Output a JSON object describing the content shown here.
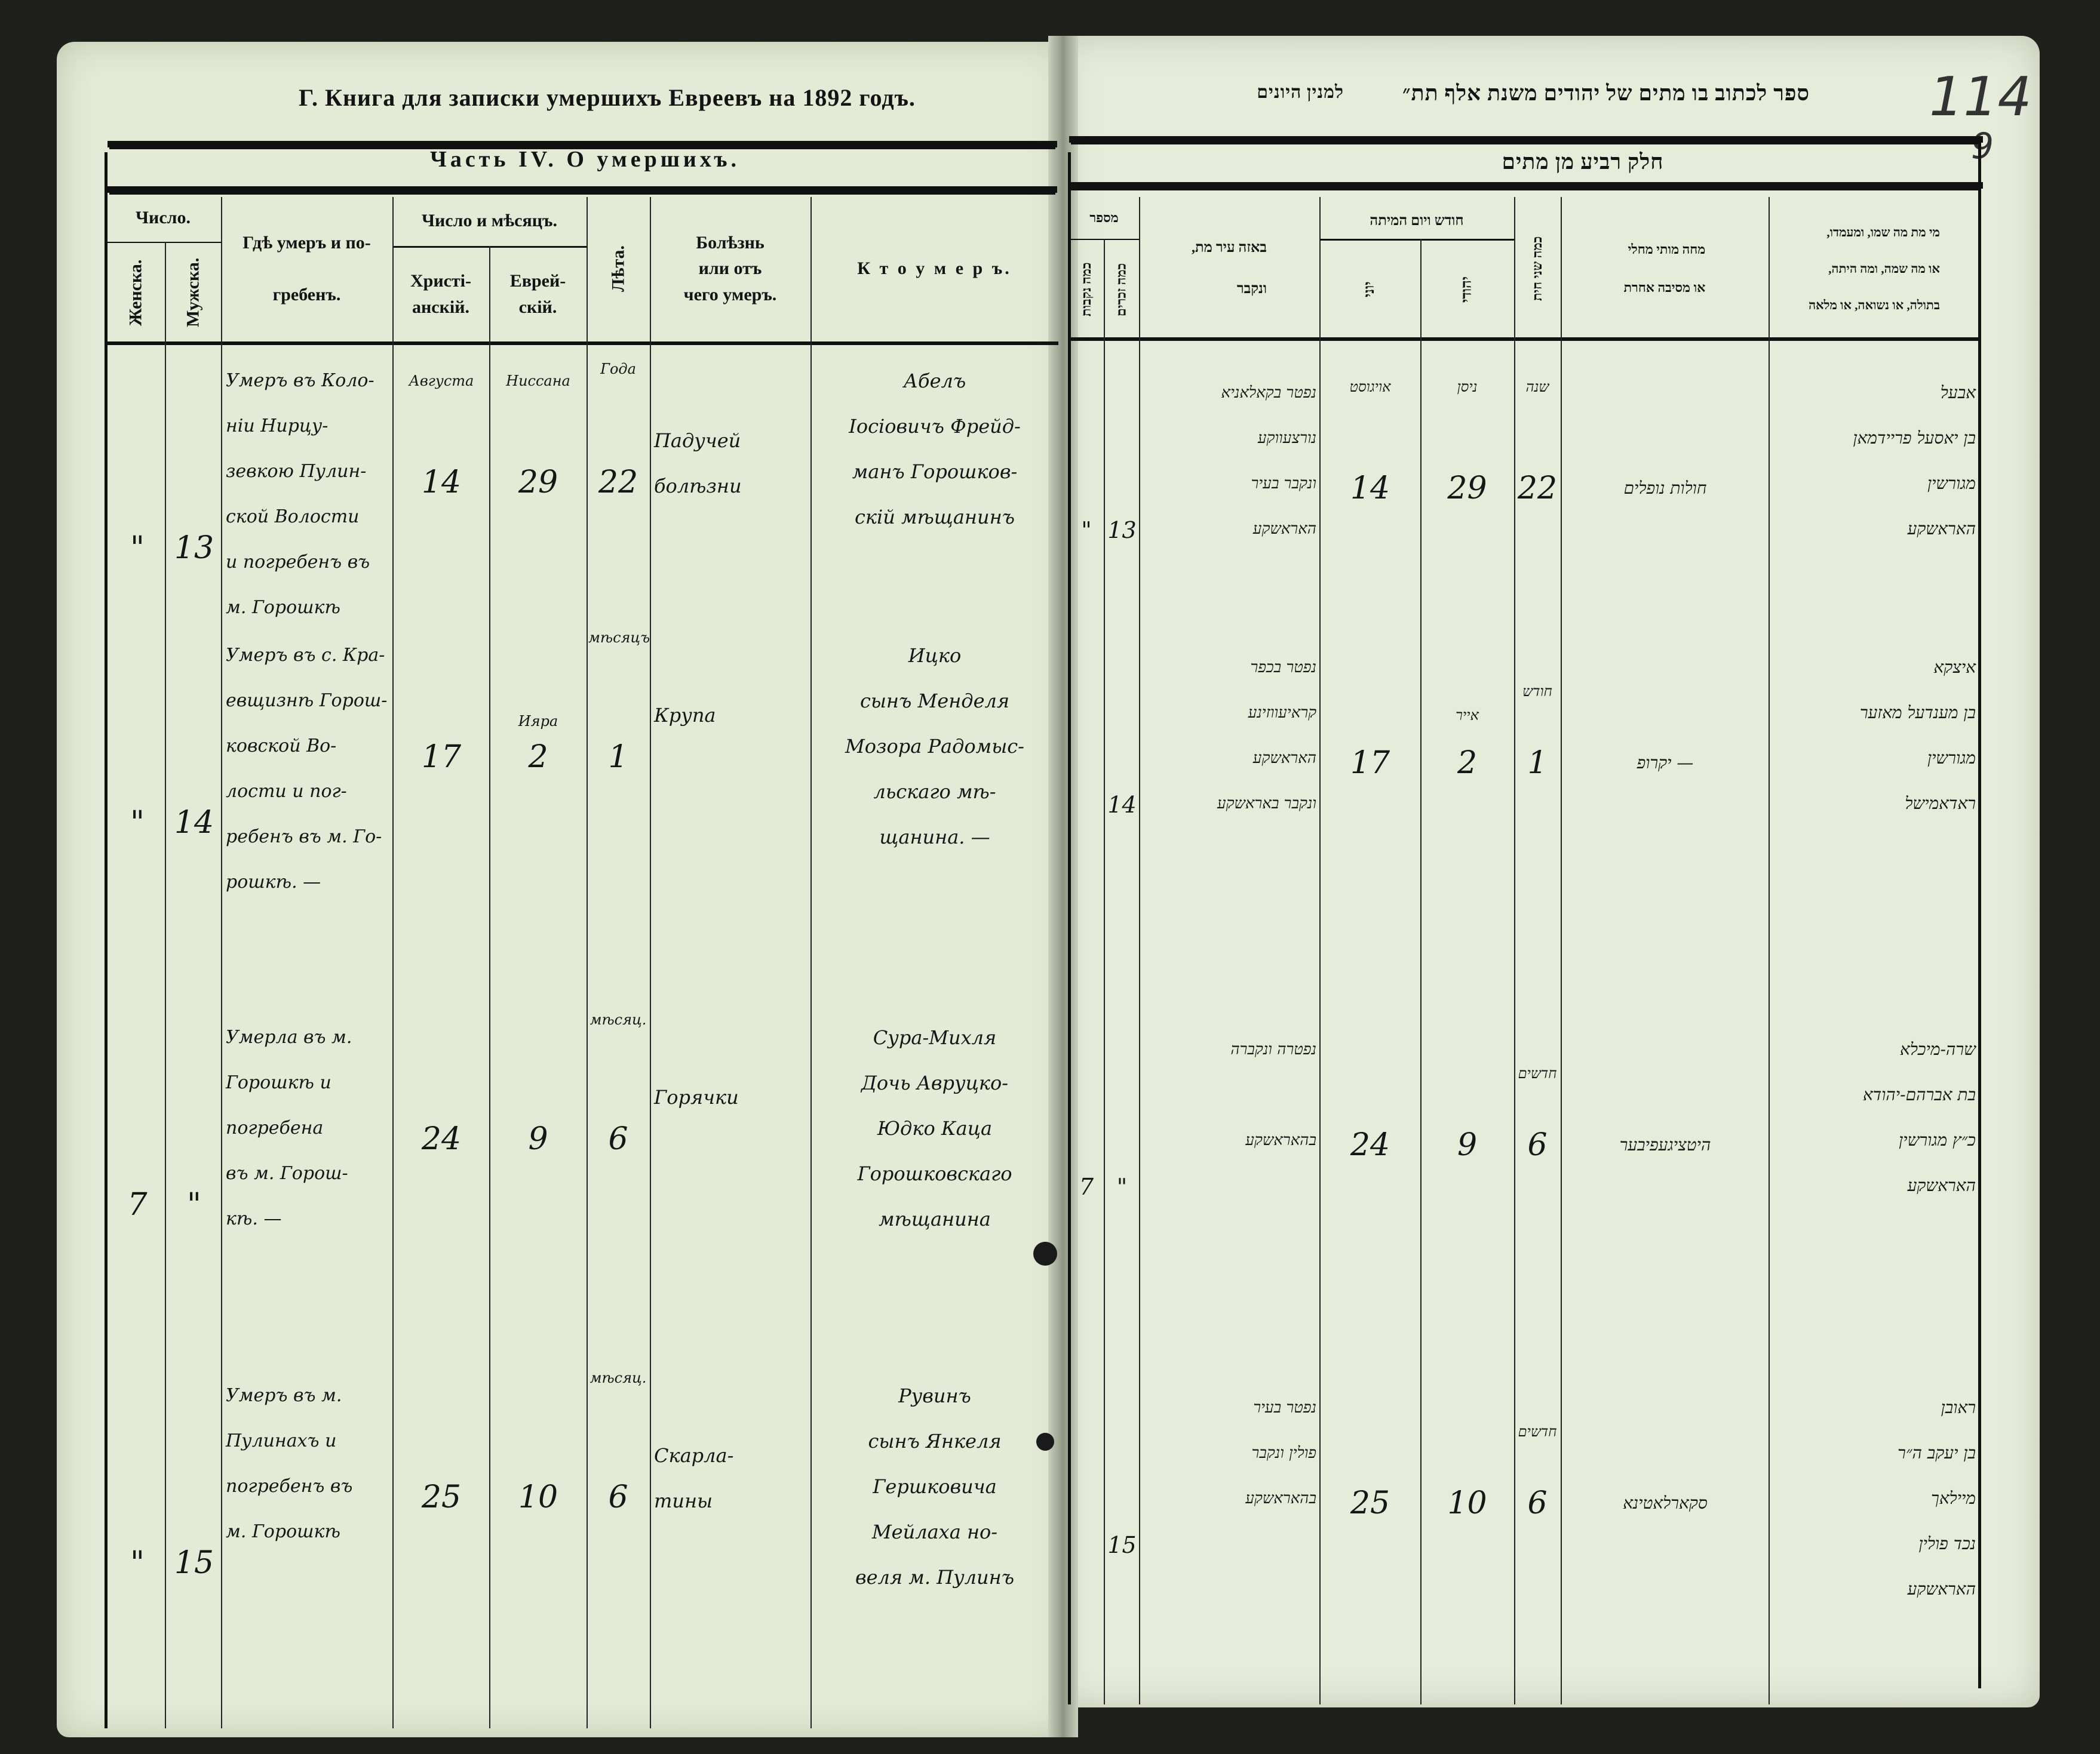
{
  "left_page": {
    "title": "Г. Книга для записки умершихъ Евреевъ на 1892 годъ.",
    "part_title": "Часть IV.  О умершихъ.",
    "headers": {
      "number": "Число.",
      "female": "Женска.",
      "male": "Мужска.",
      "place": "Гдѣ умеръ и по-\n\nгребенъ.",
      "date": "Число и мѣсяцъ.",
      "christian": "Христі-\nанскій.",
      "jewish": "Еврей-\nскій.",
      "age": "Лѣта.",
      "disease": "Болѣзнь\nили отъ\nчего умеръ.",
      "who": "К т о   у м е р ъ."
    },
    "month_labels": {
      "christian": "Августа",
      "jewish": "Ниссана",
      "age": "Года"
    },
    "entries": [
      {
        "female": "\"",
        "male": "13",
        "place": "Умеръ въ Коло-\nніи Нирцу-\nзевкою Пулин-\nской Волости\nи погребенъ въ\nм. Горошкѣ",
        "christian": "14",
        "jewish": "29",
        "jewish_month": "",
        "age": "22",
        "age_unit": "",
        "disease": "Падучей\nболѣзни",
        "who": "Абелъ\nІосіовичъ Фрейд-\nманъ Горошков-\nскій мѣщанинъ"
      },
      {
        "female": "\"",
        "male": "14",
        "place": "Умеръ въ с. Кра-\nевщизнѣ Горош-\nковской Во-\nлости и пог-\nребенъ въ м. Го-\nрошкѣ. —",
        "christian": "17",
        "jewish": "2",
        "jewish_month": "Ияра",
        "age": "1",
        "age_unit": "мѣсяцъ",
        "disease": "Крупа",
        "who": "Ицко\nсынъ Менделя\nМозора Радомыс-\nльскаго мѣ-\nщанина. —"
      },
      {
        "female": "7",
        "male": "\"",
        "place": "Умерла въ м.\nГорошкѣ и\nпогребена\nвъ м. Горош-\nкѣ. —",
        "christian": "24",
        "jewish": "9",
        "jewish_month": "",
        "age": "6",
        "age_unit": "мѣсяц.",
        "disease": "Горячки",
        "who": "Сура-Михля\nДочь Авруцко-\nЮдко Каца\nГорошковскаго\nмѣщанина"
      },
      {
        "female": "\"",
        "male": "15",
        "place": "Умеръ въ м.\nПулинахъ и\nпогребенъ въ\nм. Горошкѣ",
        "christian": "25",
        "jewish": "10",
        "jewish_month": "",
        "age": "6",
        "age_unit": "мѣсяц.",
        "disease": "Скарла-\nтины",
        "who": "Рувинъ\nсынъ Янкеля\nГершковича\nМейлаха но-\nвеля м. Пулинъ"
      }
    ]
  },
  "right_page": {
    "title": "ספר לכתוב בו מתים של יהודים משנת אלף תת״",
    "title_side": "למנין היונים",
    "page_number": "114",
    "page_sub": "9",
    "part_title": "חלק רביע מן מתים",
    "headers": {
      "number": "מספר",
      "male": "כמה זכרים",
      "female": "כמה נקבות",
      "place": "באזה עיר מת,\n\nונקבר",
      "date": "חודש ויום המיתה",
      "greek": "יוני",
      "jewish": "יהודי",
      "age": "כמה שני חית",
      "cause": "מחה מותי מחלי\n\nאו מסיבה אחרת",
      "who": "מי מת מה שמו, ומעמדו,\n\nאו מה שמה, ומה היתה,\n\nבתולה, או נשואה, או מלאה"
    },
    "month_labels": {
      "greek": "אויגוסט",
      "jewish": "ניסן",
      "age": "שנה"
    },
    "entries": [
      {
        "male": "13",
        "female": "\"",
        "place": "נפטר בקאלאניא\nנורצעווקע\nונקבר בעיר\nהאראשקע",
        "greek": "14",
        "jewish": "29",
        "age": "22",
        "age_unit": "",
        "jewish_month": "",
        "cause": "חולות נופלים",
        "who": "אבעל\nבן יאסעל פריידמאן\nמגורשין\nהאראשקע"
      },
      {
        "male": "14",
        "female": "",
        "place": "נפטר בכפר\nקראיעווזינע\nהאראשקע\nונקבר באראשקע",
        "greek": "17",
        "jewish": "2",
        "age": "1",
        "age_unit": "חודש",
        "jewish_month": "אייר",
        "cause": "— יקרופ",
        "who": "איצקא\nבן מענדעל מאזער\nמגורשין\nראדאמישל"
      },
      {
        "male": "\"",
        "female": "7",
        "place": "נפטרה ונקברה\n\nבהאראשקע",
        "greek": "24",
        "jewish": "9",
        "age": "6",
        "age_unit": "חדשים",
        "jewish_month": "",
        "cause": "היטציגעפיבער",
        "who": "שרה-מיכלא\nבת אברהם-יהודא\nכ״ץ מגורשין\nהאראשקע"
      },
      {
        "male": "15",
        "female": "",
        "place": "נפטר בעיר\nפולין ונקבר\nבהאראשקע",
        "greek": "25",
        "jewish": "10",
        "age": "6",
        "age_unit": "חדשים",
        "jewish_month": "",
        "cause": "סקארלאטינא",
        "who": "ראובן\nבן יעקב ה״ר\nמיילאך\nנכד פולין\nהאראשקע"
      }
    ]
  },
  "colors": {
    "paper": "#e3ead6",
    "ink": "#141414",
    "highlight": "#5ab478",
    "background": "#1f1f1c"
  }
}
